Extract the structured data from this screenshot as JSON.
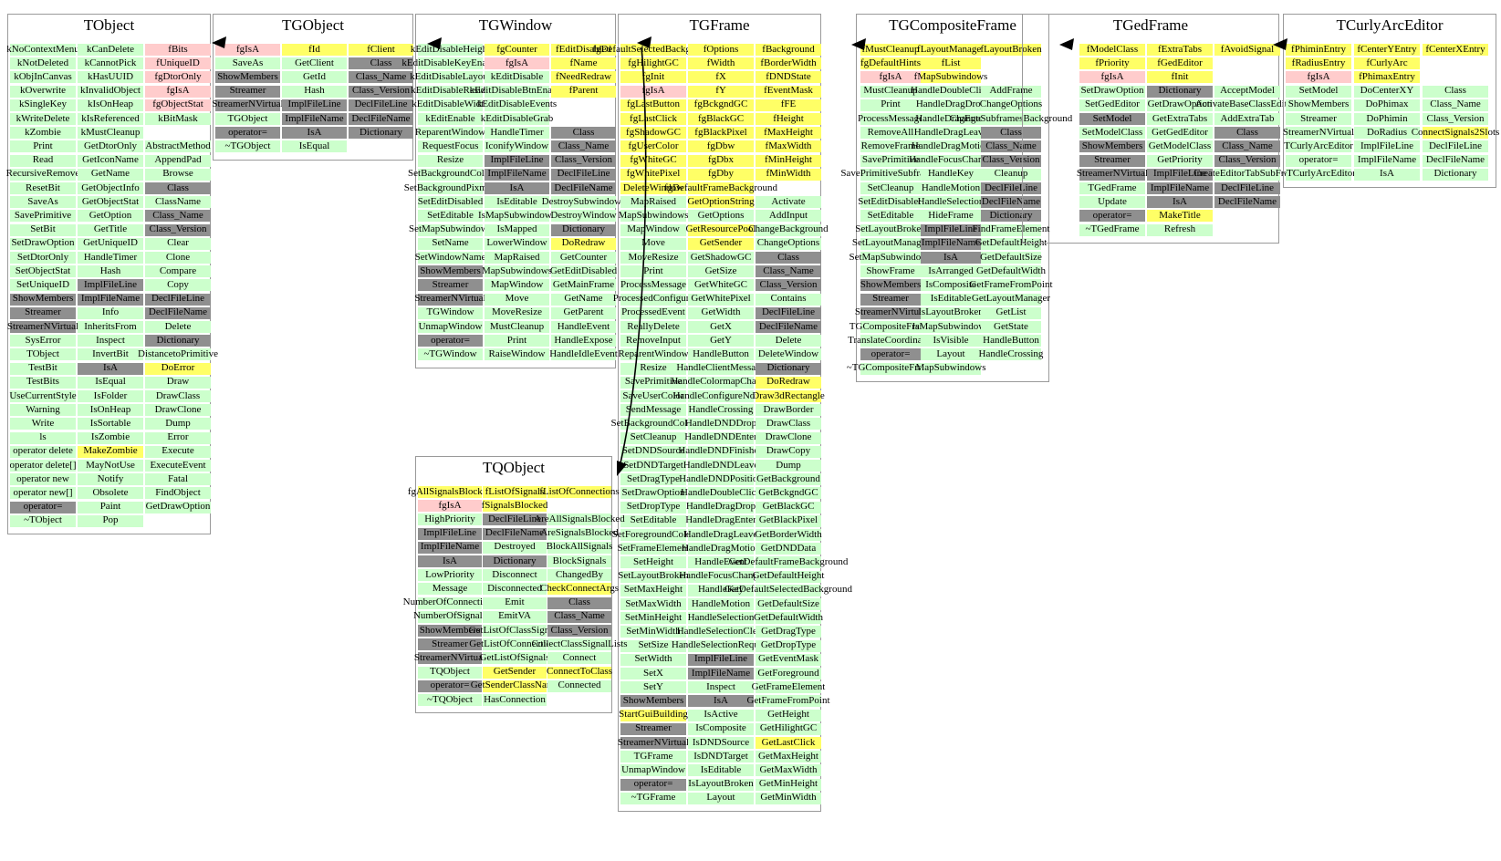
{
  "colors": {
    "public_member": "#ccffcc",
    "protected_member": "#ffff66",
    "private_member": "#ffcccc",
    "meta_member": "#8f8f8f",
    "arrow": "#000000",
    "box_border": "#9a9a9a"
  },
  "inheritance_arrows": [
    {
      "from": "TGObject",
      "to": "TObject"
    },
    {
      "from": "TGWindow",
      "to": "TGObject"
    },
    {
      "from": "TGFrame",
      "to": "TGWindow"
    },
    {
      "from": "TGFrame",
      "to": "TQObject"
    },
    {
      "from": "TGCompositeFrame",
      "to": "TGFrame"
    },
    {
      "from": "TGedFrame",
      "to": "TGCompositeFrame"
    },
    {
      "from": "TCurlyArcEditor",
      "to": "TGedFrame"
    }
  ],
  "classes": [
    {
      "name": "TObject",
      "rows": [
        [
          "kNoContextMenu|g",
          "kCanDelete|g",
          "fBits|p"
        ],
        [
          "kNotDeleted|g",
          "kCannotPick|g",
          "fUniqueID|p"
        ],
        [
          "kObjInCanvas|g",
          "kHasUUID|g",
          "fgDtorOnly|p"
        ],
        [
          "kOverwrite|g",
          "kInvalidObject|g",
          "fgIsA|p"
        ],
        [
          "kSingleKey|g",
          "kIsOnHeap|g",
          "fgObjectStat|p"
        ],
        [
          "kWriteDelete|g",
          "kIsReferenced|g",
          "kBitMask|g"
        ],
        [
          "kZombie|g",
          "kMustCleanup|g",
          ""
        ],
        [
          "Print|g",
          "GetDtorOnly|g",
          "AbstractMethod|g"
        ],
        [
          "Read|g",
          "GetIconName|g",
          "AppendPad|g"
        ],
        [
          "RecursiveRemove|g",
          "GetName|g",
          "Browse|g"
        ],
        [
          "ResetBit|g",
          "GetObjectInfo|g",
          "Class|d"
        ],
        [
          "SaveAs|g",
          "GetObjectStat|g",
          "ClassName|g"
        ],
        [
          "SavePrimitive|g",
          "GetOption|g",
          "Class_Name|d"
        ],
        [
          "SetBit|g",
          "GetTitle|g",
          "Class_Version|d"
        ],
        [
          "SetDrawOption|g",
          "GetUniqueID|g",
          "Clear|g"
        ],
        [
          "SetDtorOnly|g",
          "HandleTimer|g",
          "Clone|g"
        ],
        [
          "SetObjectStat|g",
          "Hash|g",
          "Compare|g"
        ],
        [
          "SetUniqueID|g",
          "ImplFileLine|d",
          "Copy|g"
        ],
        [
          "ShowMembers|d",
          "ImplFileName|d",
          "DeclFileLine|d"
        ],
        [
          "Streamer|d",
          "Info|g",
          "DeclFileName|d"
        ],
        [
          "StreamerNVirtual|d",
          "InheritsFrom|g",
          "Delete|g"
        ],
        [
          "SysError|g",
          "Inspect|g",
          "Dictionary|d"
        ],
        [
          "TObject|g",
          "InvertBit|g",
          "DistancetoPrimitive|g"
        ],
        [
          "TestBit|g",
          "IsA|d",
          "DoError|y"
        ],
        [
          "TestBits|g",
          "IsEqual|g",
          "Draw|g"
        ],
        [
          "UseCurrentStyle|g",
          "IsFolder|g",
          "DrawClass|g"
        ],
        [
          "Warning|g",
          "IsOnHeap|g",
          "DrawClone|g"
        ],
        [
          "Write|g",
          "IsSortable|g",
          "Dump|g"
        ],
        [
          "ls|g",
          "IsZombie|g",
          "Error|g"
        ],
        [
          "operator delete|g",
          "MakeZombie|y",
          "Execute|g"
        ],
        [
          "operator delete[]|g",
          "MayNotUse|g",
          "ExecuteEvent|g"
        ],
        [
          "operator new|g",
          "Notify|g",
          "Fatal|g"
        ],
        [
          "operator new[]|g",
          "Obsolete|g",
          "FindObject|g"
        ],
        [
          "operator=|d",
          "Paint|g",
          "GetDrawOption|g"
        ],
        [
          "~TObject|g",
          "Pop|g",
          ""
        ]
      ]
    },
    {
      "name": "TGObject",
      "rows": [
        [
          "fgIsA|p",
          "fId|y",
          "fClient|y"
        ],
        [
          "SaveAs|g",
          "GetClient|g",
          "Class|d"
        ],
        [
          "ShowMembers|d",
          "GetId|g",
          "Class_Name|d"
        ],
        [
          "Streamer|d",
          "Hash|g",
          "Class_Version|d"
        ],
        [
          "StreamerNVirtual|d",
          "ImplFileLine|d",
          "DeclFileLine|d"
        ],
        [
          "TGObject|g",
          "ImplFileName|d",
          "DeclFileName|d"
        ],
        [
          "operator=|d",
          "IsA|d",
          "Dictionary|d"
        ],
        [
          "~TGObject|g",
          "IsEqual|g",
          ""
        ]
      ]
    },
    {
      "name": "TGWindow",
      "rows": [
        [
          "kEditDisableHeight|g",
          "fgCounter|y",
          "fEditDisabled|y"
        ],
        [
          "kEditDisableKeyEnable|g",
          "fgIsA|p",
          "fName|y"
        ],
        [
          "kEditDisableLayout|g",
          "kEditDisable|g",
          "fNeedRedraw|y"
        ],
        [
          "kEditDisableResize|g",
          "kEditDisableBtnEnable|g",
          "fParent|y"
        ],
        [
          "kEditDisableWidth|g",
          "kEditDisableEvents|g",
          ""
        ],
        [
          "kEditEnable|g",
          "kEditDisableGrab|g",
          ""
        ],
        [
          "ReparentWindow|g",
          "HandleTimer|g",
          "Class|d"
        ],
        [
          "RequestFocus|g",
          "IconifyWindow|g",
          "Class_Name|d"
        ],
        [
          "Resize|g",
          "ImplFileLine|d",
          "Class_Version|d"
        ],
        [
          "SetBackgroundColor|g",
          "ImplFileName|d",
          "DeclFileLine|d"
        ],
        [
          "SetBackgroundPixmap|g",
          "IsA|d",
          "DeclFileName|d"
        ],
        [
          "SetEditDisabled|g",
          "IsEditable|g",
          "DestroySubwindows|g"
        ],
        [
          "SetEditable|g",
          "IsMapSubwindows|g",
          "DestroyWindow|g"
        ],
        [
          "SetMapSubwindows|g",
          "IsMapped|g",
          "Dictionary|d"
        ],
        [
          "SetName|g",
          "LowerWindow|g",
          "DoRedraw|y"
        ],
        [
          "SetWindowName|g",
          "MapRaised|g",
          "GetCounter|g"
        ],
        [
          "ShowMembers|d",
          "MapSubwindows|g",
          "GetEditDisabled|g"
        ],
        [
          "Streamer|d",
          "MapWindow|g",
          "GetMainFrame|g"
        ],
        [
          "StreamerNVirtual|d",
          "Move|g",
          "GetName|g"
        ],
        [
          "TGWindow|g",
          "MoveResize|g",
          "GetParent|g"
        ],
        [
          "UnmapWindow|g",
          "MustCleanup|g",
          "HandleEvent|g"
        ],
        [
          "operator=|d",
          "Print|g",
          "HandleExpose|g"
        ],
        [
          "~TGWindow|g",
          "RaiseWindow|g",
          "HandleIdleEvent|g"
        ]
      ]
    },
    {
      "name": "TGFrame",
      "rows": [
        [
          "fgDefaultSelectedBackground|y",
          "fOptions|y",
          "fBackground|y"
        ],
        [
          "fgHilightGC|y",
          "fWidth|y",
          "fBorderWidth|y"
        ],
        [
          "fgInit|y",
          "fX|y",
          "fDNDState|y"
        ],
        [
          "fgIsA|p",
          "fY|y",
          "fEventMask|y"
        ],
        [
          "fgLastButton|y",
          "fgBckgndGC|y",
          "fFE|y"
        ],
        [
          "fgLastClick|y",
          "fgBlackGC|y",
          "fHeight|y"
        ],
        [
          "fgShadowGC|y",
          "fgBlackPixel|y",
          "fMaxHeight|y"
        ],
        [
          "fgUserColor|y",
          "fgDbw|y",
          "fMaxWidth|y"
        ],
        [
          "fgWhiteGC|y",
          "fgDbx|y",
          "fMinHeight|y"
        ],
        [
          "fgWhitePixel|y",
          "fgDby|y",
          "fMinWidth|y"
        ],
        [
          "DeleteWindow|y",
          "fgDefaultFrameBackground|y",
          ""
        ],
        [
          "MapRaised|g",
          "GetOptionString|y",
          "Activate|g"
        ],
        [
          "MapSubwindows|g",
          "GetOptions|g",
          "AddInput|g"
        ],
        [
          "MapWindow|g",
          "GetResourcePool|y",
          "ChangeBackground|g"
        ],
        [
          "Move|g",
          "GetSender|y",
          "ChangeOptions|g"
        ],
        [
          "MoveResize|g",
          "GetShadowGC|g",
          "Class|d"
        ],
        [
          "Print|g",
          "GetSize|g",
          "Class_Name|d"
        ],
        [
          "ProcessMessage|g",
          "GetWhiteGC|g",
          "Class_Version|d"
        ],
        [
          "ProcessedConfigure|g",
          "GetWhitePixel|g",
          "Contains|g"
        ],
        [
          "ProcessedEvent|g",
          "GetWidth|g",
          "DeclFileLine|d"
        ],
        [
          "ReallyDelete|g",
          "GetX|g",
          "DeclFileName|d"
        ],
        [
          "RemoveInput|g",
          "GetY|g",
          "Delete|g"
        ],
        [
          "ReparentWindow|g",
          "HandleButton|g",
          "DeleteWindow|g"
        ],
        [
          "Resize|g",
          "HandleClientMessage|g",
          "Dictionary|d"
        ],
        [
          "SavePrimitive|g",
          "HandleColormapChange|g",
          "DoRedraw|y"
        ],
        [
          "SaveUserColor|g",
          "HandleConfigureNotify|g",
          "Draw3dRectangle|y"
        ],
        [
          "SendMessage|g",
          "HandleCrossing|g",
          "DrawBorder|g"
        ],
        [
          "SetBackgroundColor|g",
          "HandleDNDDrop|g",
          "DrawClass|g"
        ],
        [
          "SetCleanup|g",
          "HandleDNDEnter|g",
          "DrawClone|g"
        ],
        [
          "SetDNDSource|g",
          "HandleDNDFinished|g",
          "DrawCopy|g"
        ],
        [
          "SetDNDTarget|g",
          "HandleDNDLeave|g",
          "Dump|g"
        ],
        [
          "SetDragType|g",
          "HandleDNDPosition|g",
          "GetBackground|g"
        ],
        [
          "SetDrawOption|g",
          "HandleDoubleClick|g",
          "GetBckgndGC|g"
        ],
        [
          "SetDropType|g",
          "HandleDragDrop|g",
          "GetBlackGC|g"
        ],
        [
          "SetEditable|g",
          "HandleDragEnter|g",
          "GetBlackPixel|g"
        ],
        [
          "SetForegroundColor|g",
          "HandleDragLeave|g",
          "GetBorderWidth|g"
        ],
        [
          "SetFrameElement|g",
          "HandleDragMotion|g",
          "GetDNDData|g"
        ],
        [
          "SetHeight|g",
          "HandleEvent|g",
          "GetDefaultFrameBackground|g"
        ],
        [
          "SetLayoutBroken|g",
          "HandleFocusChange|g",
          "GetDefaultHeight|g"
        ],
        [
          "SetMaxHeight|g",
          "HandleKey|g",
          "GetDefaultSelectedBackground|g"
        ],
        [
          "SetMaxWidth|g",
          "HandleMotion|g",
          "GetDefaultSize|g"
        ],
        [
          "SetMinHeight|g",
          "HandleSelection|g",
          "GetDefaultWidth|g"
        ],
        [
          "SetMinWidth|g",
          "HandleSelectionClear|g",
          "GetDragType|g"
        ],
        [
          "SetSize|g",
          "HandleSelectionRequest|g",
          "GetDropType|g"
        ],
        [
          "SetWidth|g",
          "ImplFileLine|d",
          "GetEventMask|g"
        ],
        [
          "SetX|g",
          "ImplFileName|d",
          "GetForeground|g"
        ],
        [
          "SetY|g",
          "Inspect|g",
          "GetFrameElement|g"
        ],
        [
          "ShowMembers|d",
          "IsA|d",
          "GetFrameFromPoint|g"
        ],
        [
          "StartGuiBuilding|y",
          "IsActive|g",
          "GetHeight|g"
        ],
        [
          "Streamer|d",
          "IsComposite|g",
          "GetHilightGC|g"
        ],
        [
          "StreamerNVirtual|d",
          "IsDNDSource|g",
          "GetLastClick|y"
        ],
        [
          "TGFrame|g",
          "IsDNDTarget|g",
          "GetMaxHeight|g"
        ],
        [
          "UnmapWindow|g",
          "IsEditable|g",
          "GetMaxWidth|g"
        ],
        [
          "operator=|d",
          "IsLayoutBroken|g",
          "GetMinHeight|g"
        ],
        [
          "~TGFrame|g",
          "Layout|g",
          "GetMinWidth|g"
        ]
      ]
    },
    {
      "name": "TQObject",
      "rows": [
        [
          "fgAllSignalsBlocked|y",
          "fListOfSignals|y",
          "fListOfConnections|y"
        ],
        [
          "fgIsA|p",
          "fSignalsBlocked|y",
          ""
        ],
        [
          "HighPriority|g",
          "DeclFileLine|d",
          "AreAllSignalsBlocked|g"
        ],
        [
          "ImplFileLine|d",
          "DeclFileName|d",
          "AreSignalsBlocked|g"
        ],
        [
          "ImplFileName|d",
          "Destroyed|g",
          "BlockAllSignals|g"
        ],
        [
          "IsA|d",
          "Dictionary|d",
          "BlockSignals|g"
        ],
        [
          "LowPriority|g",
          "Disconnect|g",
          "ChangedBy|g"
        ],
        [
          "Message|g",
          "Disconnected|g",
          "CheckConnectArgs|y"
        ],
        [
          "NumberOfConnections|g",
          "Emit|g",
          "Class|d"
        ],
        [
          "NumberOfSignals|g",
          "EmitVA|g",
          "Class_Name|d"
        ],
        [
          "ShowMembers|d",
          "GetListOfClassSignals|g",
          "Class_Version|d"
        ],
        [
          "Streamer|d",
          "GetListOfConnections|g",
          "CollectClassSignalLists|g"
        ],
        [
          "StreamerNVirtual|d",
          "GetListOfSignals|g",
          "Connect|g"
        ],
        [
          "TQObject|g",
          "GetSender|y",
          "ConnectToClass|y"
        ],
        [
          "operator=|d",
          "GetSenderClassName|y",
          "Connected|g"
        ],
        [
          "~TQObject|g",
          "HasConnection|g",
          ""
        ]
      ]
    },
    {
      "name": "TGCompositeFrame",
      "rows": [
        [
          "fMustCleanup|y",
          "fLayoutManager|y",
          "fLayoutBroken|y"
        ],
        [
          "fgDefaultHints|y",
          "fList|y",
          ""
        ],
        [
          "fgIsA|p",
          "fMapSubwindows|y",
          ""
        ],
        [
          "MustCleanup|g",
          "HandleDoubleClick|g",
          "AddFrame|g"
        ],
        [
          "Print|g",
          "HandleDragDrop|g",
          "ChangeOptions|g"
        ],
        [
          "ProcessMessage|g",
          "HandleDragEnter|g",
          "ChangeSubframesBackground|g"
        ],
        [
          "RemoveAll|g",
          "HandleDragLeave|g",
          "Class|d"
        ],
        [
          "RemoveFrame|g",
          "HandleDragMotion|g",
          "Class_Name|d"
        ],
        [
          "SavePrimitive|g",
          "HandleFocusChange|g",
          "Class_Version|d"
        ],
        [
          "SavePrimitiveSubframes|g",
          "HandleKey|g",
          "Cleanup|g"
        ],
        [
          "SetCleanup|g",
          "HandleMotion|g",
          "DeclFileLine|d"
        ],
        [
          "SetEditDisabled|g",
          "HandleSelection|g",
          "DeclFileName|d"
        ],
        [
          "SetEditable|g",
          "HideFrame|g",
          "Dictionary|d"
        ],
        [
          "SetLayoutBroken|g",
          "ImplFileLine|d",
          "FindFrameElement|g"
        ],
        [
          "SetLayoutManager|g",
          "ImplFileName|d",
          "GetDefaultHeight|g"
        ],
        [
          "SetMapSubwindows|g",
          "IsA|d",
          "GetDefaultSize|g"
        ],
        [
          "ShowFrame|g",
          "IsArranged|g",
          "GetDefaultWidth|g"
        ],
        [
          "ShowMembers|d",
          "IsComposite|g",
          "GetFrameFromPoint|g"
        ],
        [
          "Streamer|d",
          "IsEditable|g",
          "GetLayoutManager|g"
        ],
        [
          "StreamerNVirtual|d",
          "IsLayoutBroken|g",
          "GetList|g"
        ],
        [
          "TGCompositeFrame|g",
          "IsMapSubwindows|g",
          "GetState|g"
        ],
        [
          "TranslateCoordinates|g",
          "IsVisible|g",
          "HandleButton|g"
        ],
        [
          "operator=|d",
          "Layout|g",
          "HandleCrossing|g"
        ],
        [
          "~TGCompositeFrame|g",
          "MapSubwindows|g",
          ""
        ]
      ]
    },
    {
      "name": "TGedFrame",
      "rows": [
        [
          "fModelClass|y",
          "fExtraTabs|y",
          "fAvoidSignal|y"
        ],
        [
          "fPriority|y",
          "fGedEditor|y",
          ""
        ],
        [
          "fgIsA|p",
          "fInit|y",
          ""
        ],
        [
          "SetDrawOption|g",
          "Dictionary|d",
          "AcceptModel|g"
        ],
        [
          "SetGedEditor|g",
          "GetDrawOption|g",
          "ActivateBaseClassEditors|g"
        ],
        [
          "SetModel|d",
          "GetExtraTabs|g",
          "AddExtraTab|g"
        ],
        [
          "SetModelClass|g",
          "GetGedEditor|g",
          "Class|d"
        ],
        [
          "ShowMembers|d",
          "GetModelClass|g",
          "Class_Name|d"
        ],
        [
          "Streamer|d",
          "GetPriority|g",
          "Class_Version|d"
        ],
        [
          "StreamerNVirtual|d",
          "ImplFileLine|d",
          "CreateEditorTabSubFrame|g"
        ],
        [
          "TGedFrame|g",
          "ImplFileName|d",
          "DeclFileLine|d"
        ],
        [
          "Update|g",
          "IsA|d",
          "DeclFileName|d"
        ],
        [
          "operator=|d",
          "MakeTitle|y",
          ""
        ],
        [
          "~TGedFrame|g",
          "Refresh|g",
          ""
        ]
      ]
    },
    {
      "name": "TCurlyArcEditor",
      "rows": [
        [
          "fPhiminEntry|y",
          "fCenterYEntry|y",
          "fCenterXEntry|y"
        ],
        [
          "fRadiusEntry|y",
          "fCurlyArc|y",
          ""
        ],
        [
          "fgIsA|p",
          "fPhimaxEntry|y",
          ""
        ],
        [
          "SetModel|g",
          "DoCenterXY|g",
          "Class|g"
        ],
        [
          "ShowMembers|g",
          "DoPhimax|g",
          "Class_Name|g"
        ],
        [
          "Streamer|g",
          "DoPhimin|g",
          "Class_Version|g"
        ],
        [
          "StreamerNVirtual|g",
          "DoRadius|g",
          "ConnectSignals2Slots|y"
        ],
        [
          "TCurlyArcEditor|g",
          "ImplFileLine|g",
          "DeclFileLine|g"
        ],
        [
          "operator=|g",
          "ImplFileName|g",
          "DeclFileName|g"
        ],
        [
          "~TCurlyArcEditor|g",
          "IsA|g",
          "Dictionary|g"
        ]
      ]
    }
  ]
}
